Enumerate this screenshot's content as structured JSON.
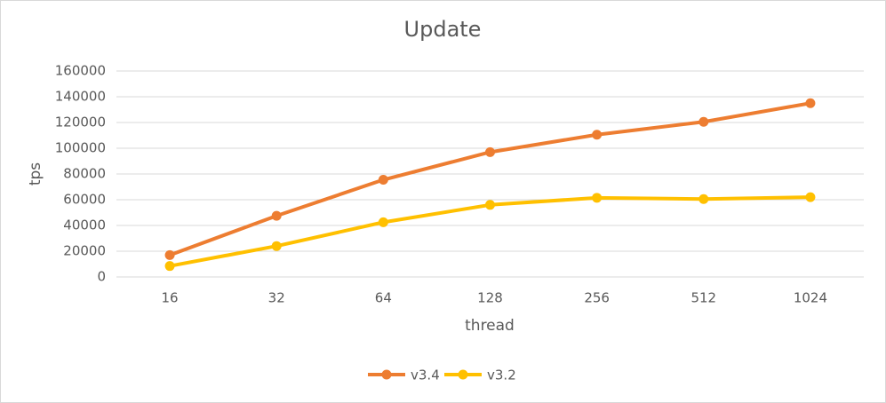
{
  "chart_data": {
    "type": "line",
    "title": "Update",
    "x_label": "thread",
    "y_label": "tps",
    "categories": [
      "16",
      "32",
      "64",
      "128",
      "256",
      "512",
      "1024"
    ],
    "series": [
      {
        "name": "v3.4",
        "color": "#ed7d31",
        "values": [
          17000,
          47500,
          75500,
          97000,
          110500,
          120500,
          135000
        ]
      },
      {
        "name": "v3.2",
        "color": "#ffc000",
        "values": [
          8500,
          24000,
          42500,
          56000,
          61500,
          60500,
          62000
        ]
      }
    ],
    "ylim": [
      0,
      160000
    ],
    "yticks": [
      0,
      20000,
      40000,
      60000,
      80000,
      100000,
      120000,
      140000,
      160000
    ],
    "grid": true,
    "legend": "bottom"
  }
}
